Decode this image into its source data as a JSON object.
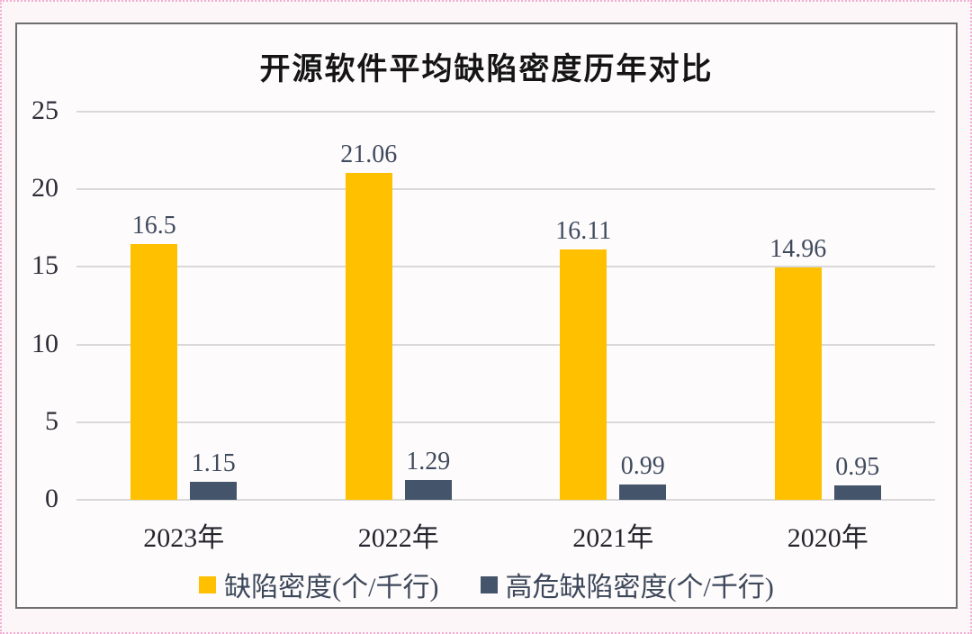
{
  "page": {
    "background": "#fdf6f8",
    "dotted_frame_color": "#f2aed2",
    "chart_frame_border_color": "#6e6e6e",
    "chart_background": "#fefbfc"
  },
  "chart_data": {
    "type": "bar",
    "title": "开源软件平均缺陷密度历年对比",
    "categories": [
      "2023年",
      "2022年",
      "2021年",
      "2020年"
    ],
    "series": [
      {
        "slug": "defect-density",
        "name": "缺陷密度(个/千行)",
        "color": "#FFC000",
        "values": [
          16.5,
          21.06,
          16.11,
          14.96
        ],
        "labels": [
          "16.5",
          "21.06",
          "16.11",
          "14.96"
        ]
      },
      {
        "slug": "high-risk-defect-density",
        "name": "高危缺陷密度(个/千行)",
        "color": "#44546A",
        "values": [
          1.15,
          1.29,
          0.99,
          0.95
        ],
        "labels": [
          "1.15",
          "1.29",
          "0.99",
          "0.95"
        ]
      }
    ],
    "y_ticks": [
      0,
      5,
      10,
      15,
      20,
      25
    ],
    "ylim": [
      0,
      25
    ],
    "grid": true,
    "gridline_color": "#d9d9d9",
    "legend_position": "bottom",
    "axis_text_color": "#2c2c36",
    "data_label_color": "#3f4b5e",
    "xlabel": "",
    "ylabel": ""
  }
}
